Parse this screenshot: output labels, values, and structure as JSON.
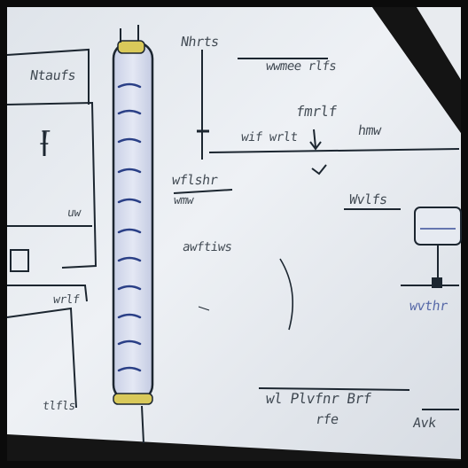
{
  "scene": {
    "caption": "whiteboard with hand-drawn diagram of a vertical column and process lines"
  },
  "colors": {
    "board": "#e9edf2",
    "ink_black": "#1c2630",
    "ink_blue": "#3a4f9a",
    "highlight_yellow": "#d9c95a",
    "frame": "#0b0b0b"
  },
  "scribbles": {
    "top_left_note": "Ntaufs",
    "top_center_note": "Nhrts",
    "top_right_note": "wwmee rlfs",
    "mid_tag_1": "wif wrlt",
    "mid_tag_2": "fmrlf",
    "mid_tag_3": "hmw",
    "center_left_note": "wflshr",
    "center_left_note_2": "wmw",
    "center_note": "awftiws",
    "right_note": "Wvlfs",
    "right_lower_note": "wvthr",
    "bottom_center_note": "wl Plvfnr Brf",
    "bottom_center_note_2": "rfe",
    "bottom_right_note": "Avk",
    "left_lower_note": "wrlf",
    "left_lower_note_2": "tlfls",
    "left_box_note": "I",
    "left_box_note_2": "uw"
  }
}
